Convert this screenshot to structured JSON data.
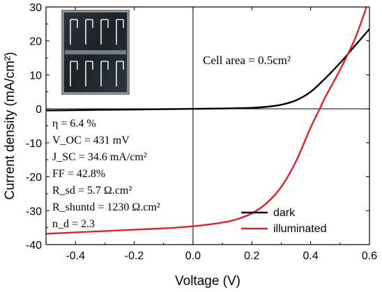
{
  "chart_data": {
    "type": "line",
    "xlabel": "Voltage (V)",
    "ylabel": "Current density (mA/cm²)",
    "xlim": [
      -0.5,
      0.6
    ],
    "ylim": [
      -40,
      30
    ],
    "xticks": [
      -0.4,
      -0.2,
      0.0,
      0.2,
      0.4,
      0.6
    ],
    "xtick_labels": [
      "-0.4",
      "-0.2",
      "0.0",
      "0.2",
      "0.4",
      "0.6"
    ],
    "yticks": [
      -40,
      -30,
      -20,
      -10,
      0,
      10,
      20,
      30
    ],
    "ytick_labels": [
      "-40",
      "-30",
      "-20",
      "-10",
      "0",
      "10",
      "20",
      "30"
    ],
    "zero_lines": true,
    "legend_position": "bottom-right",
    "series": [
      {
        "name": "dark",
        "color": "#000000",
        "x": [
          -0.5,
          -0.4,
          -0.3,
          -0.2,
          -0.1,
          0.0,
          0.1,
          0.2,
          0.25,
          0.3,
          0.35,
          0.4,
          0.45,
          0.5,
          0.55,
          0.6
        ],
        "y": [
          -0.5,
          -0.4,
          -0.3,
          -0.2,
          -0.1,
          0.0,
          0.1,
          0.3,
          0.6,
          1.2,
          2.5,
          5.0,
          9.0,
          13.5,
          18.5,
          23.5
        ]
      },
      {
        "name": "illuminated",
        "color": "#e0202a",
        "x": [
          -0.5,
          -0.4,
          -0.3,
          -0.2,
          -0.1,
          0.0,
          0.1,
          0.15,
          0.2,
          0.25,
          0.3,
          0.35,
          0.4,
          0.431,
          0.45,
          0.5,
          0.55,
          0.59
        ],
        "y": [
          -36.8,
          -36.4,
          -36.0,
          -35.6,
          -35.2,
          -34.6,
          -33.5,
          -32.5,
          -30.8,
          -27.8,
          -23.0,
          -15.5,
          -5.5,
          0.0,
          3.5,
          11.5,
          20.5,
          30.0
        ]
      }
    ],
    "annotations": {
      "cell_area": "Cell area = 0.5cm²",
      "params": [
        "η = 6.4 %",
        "V_OC = 431 mV",
        "J_SC = 34.6 mA/cm²",
        "FF = 42.8%",
        "R_sd = 5.7 Ω.cm²",
        "R_shuntd = 1230 Ω.cm²",
        "n_d = 2.3"
      ]
    }
  }
}
